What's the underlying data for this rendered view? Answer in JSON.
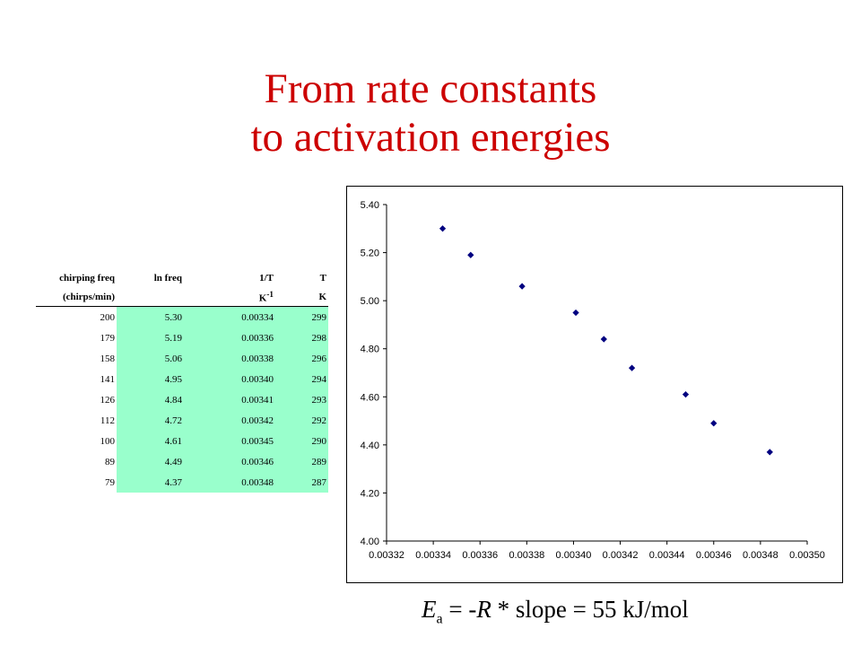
{
  "slide": {
    "title_line1": "From rate constants",
    "title_line2": "to activation energies"
  },
  "table": {
    "headers": [
      "chirping freq",
      "ln freq",
      "1/T",
      "T"
    ],
    "units": {
      "c1": "(chirps/min)",
      "c2": "",
      "c3_base": "K",
      "c3_exp": "-1",
      "c4": "K"
    },
    "rows": [
      [
        "200",
        "5.30",
        "0.00334",
        "299"
      ],
      [
        "179",
        "5.19",
        "0.00336",
        "298"
      ],
      [
        "158",
        "5.06",
        "0.00338",
        "296"
      ],
      [
        "141",
        "4.95",
        "0.00340",
        "294"
      ],
      [
        "126",
        "4.84",
        "0.00341",
        "293"
      ],
      [
        "112",
        "4.72",
        "0.00342",
        "292"
      ],
      [
        "100",
        "4.61",
        "0.00345",
        "290"
      ],
      [
        "89",
        "4.49",
        "0.00346",
        "289"
      ],
      [
        "79",
        "4.37",
        "0.00348",
        "287"
      ]
    ]
  },
  "chart_data": {
    "type": "scatter",
    "title": "",
    "xlabel": "",
    "ylabel": "",
    "xlim": [
      0.00332,
      0.0035
    ],
    "ylim": [
      4.0,
      5.4
    ],
    "x_ticks": [
      "0.00332",
      "0.00334",
      "0.00336",
      "0.00338",
      "0.00340",
      "0.00342",
      "0.00344",
      "0.00346",
      "0.00348",
      "0.00350"
    ],
    "y_ticks": [
      "4.00",
      "4.20",
      "4.40",
      "4.60",
      "4.80",
      "5.00",
      "5.20",
      "5.40"
    ],
    "grid": false,
    "legend": "none",
    "marker_color": "#000080",
    "series": [
      {
        "x": [
          0.003344,
          0.003356,
          0.003378,
          0.003401,
          0.003413,
          0.003425,
          0.003448,
          0.00346,
          0.003484
        ],
        "y": [
          5.3,
          5.19,
          5.06,
          4.95,
          4.84,
          4.72,
          4.61,
          4.49,
          4.37
        ]
      }
    ]
  },
  "formula": {
    "symbol": "E",
    "subscript": "a",
    "eq1": " = -",
    "R": "R",
    "rest": " * slope = 55 kJ/mol"
  }
}
